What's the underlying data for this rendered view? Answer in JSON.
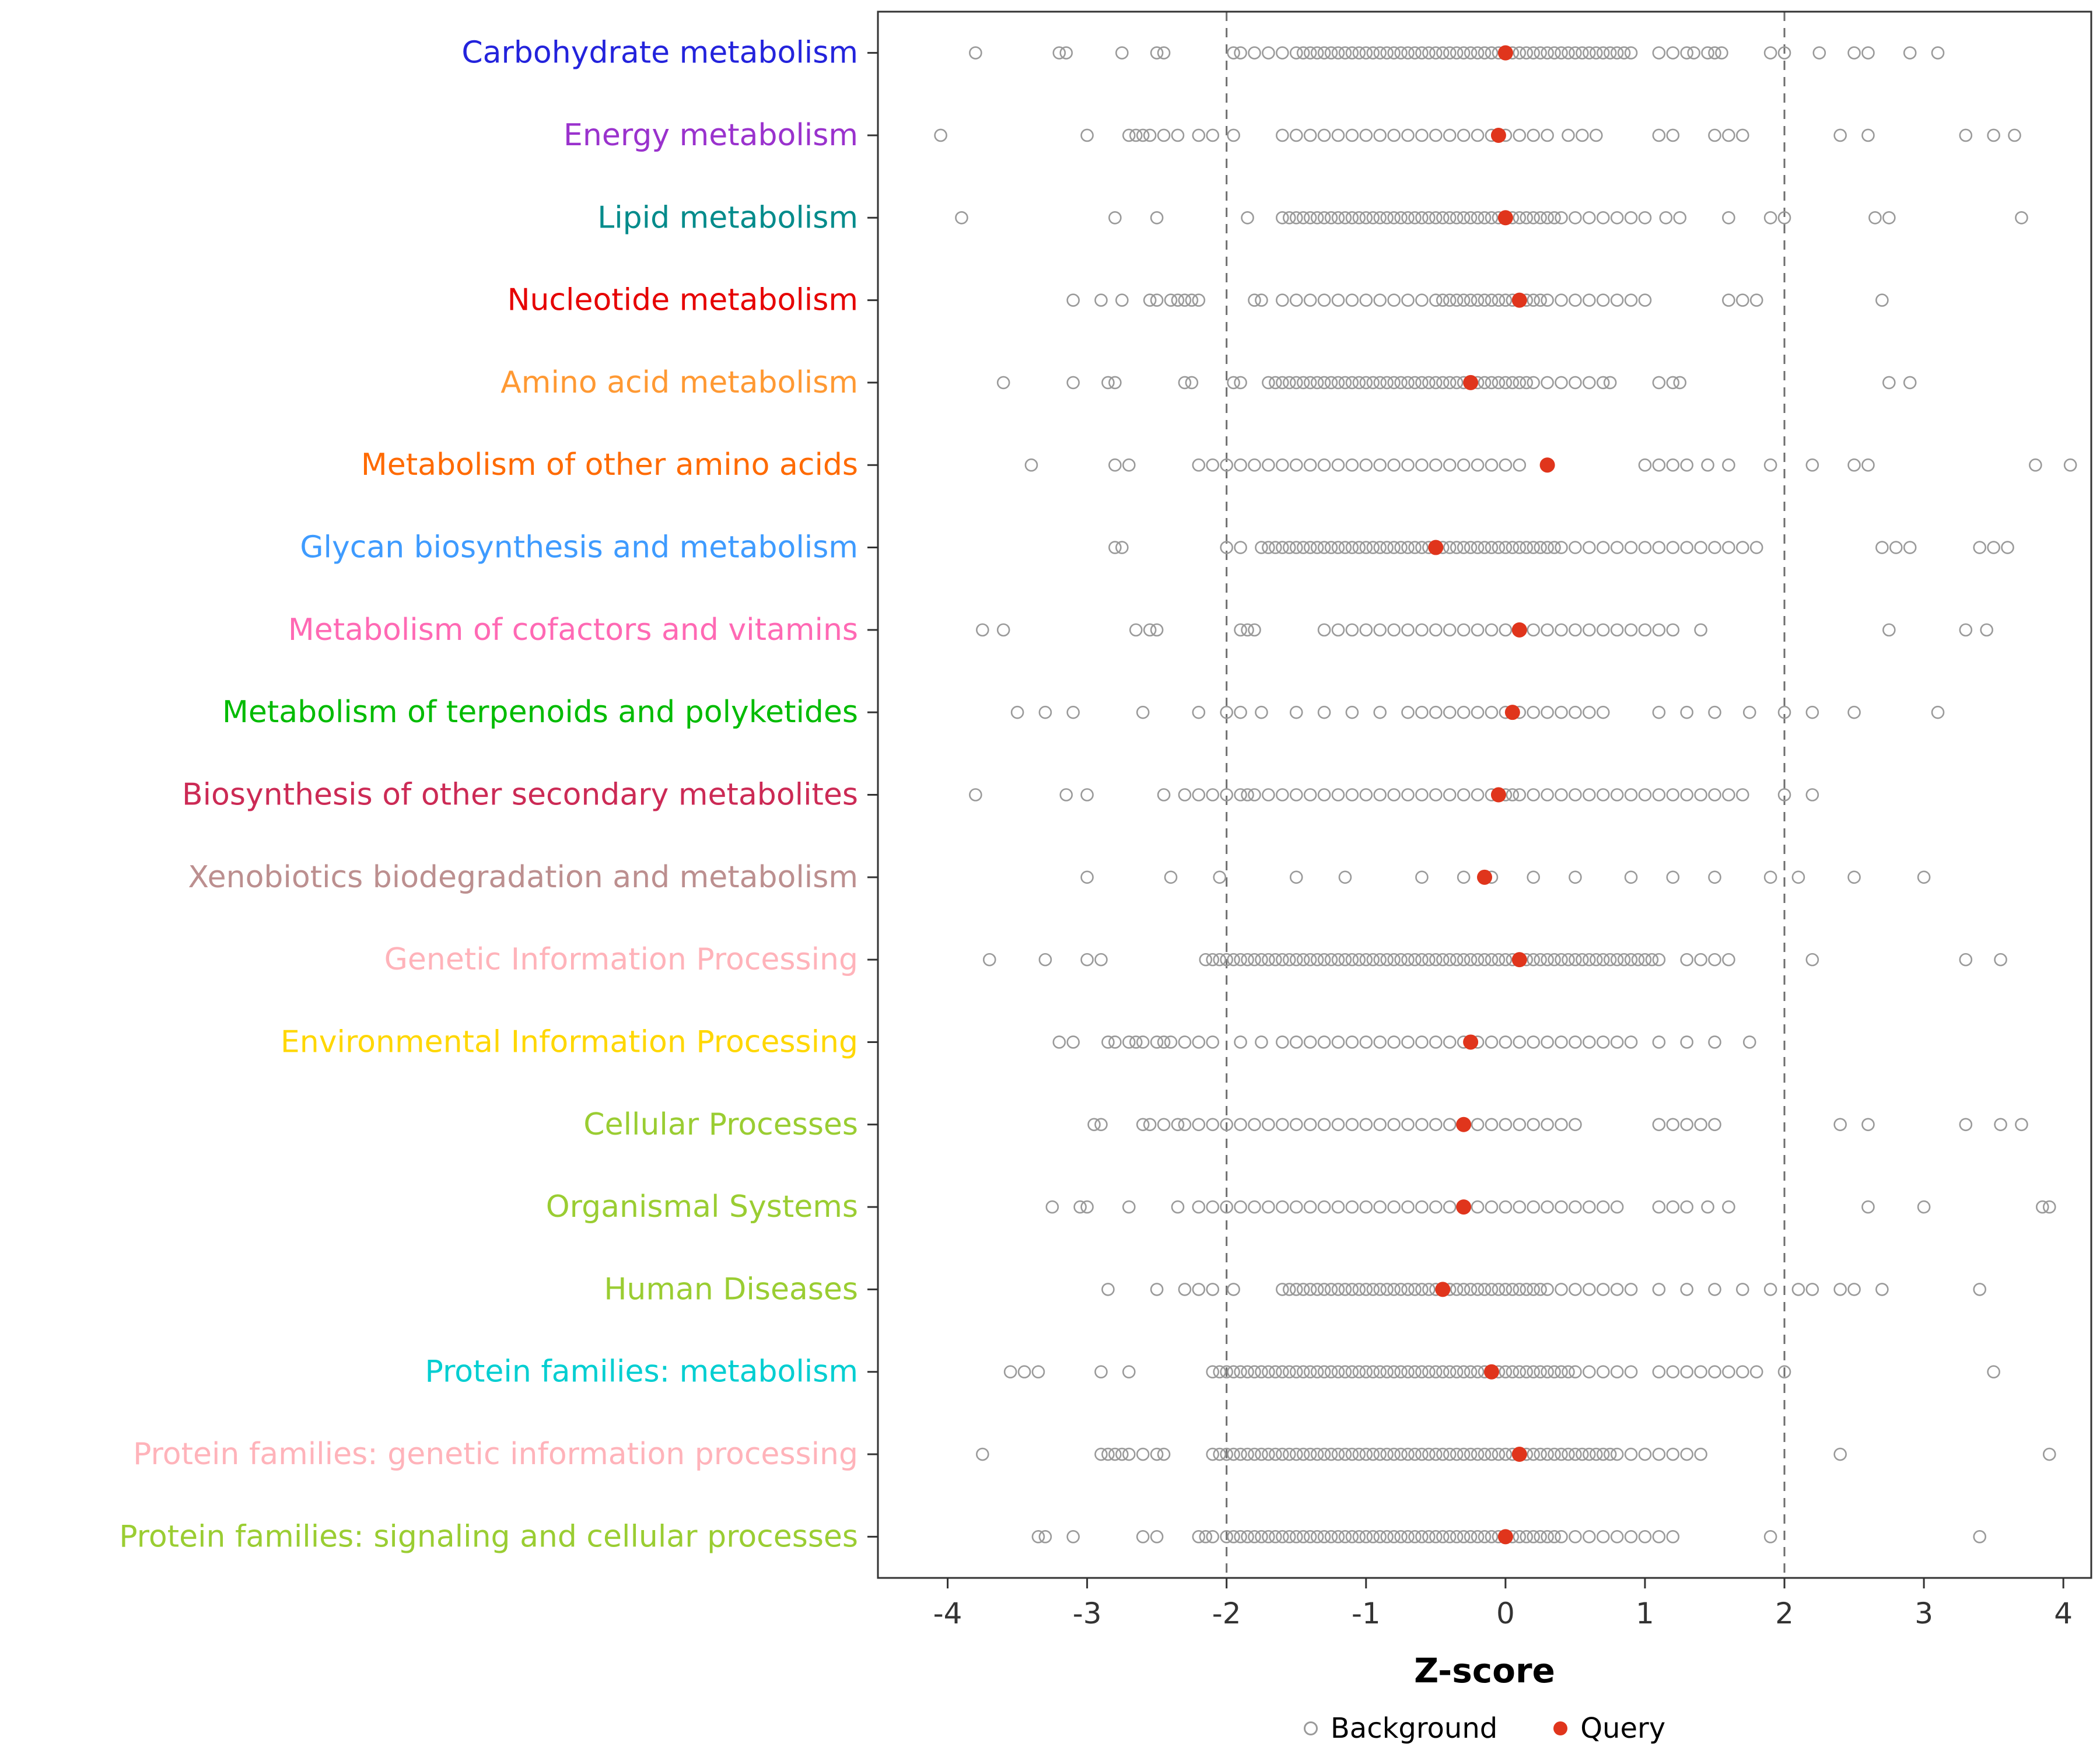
{
  "chart_data": {
    "type": "scatter",
    "subtype": "strip-plot",
    "title": "",
    "xlabel": "Z-score",
    "xlim": [
      -4.5,
      4.2
    ],
    "x_ticks": [
      -4,
      -3,
      -2,
      -1,
      0,
      1,
      2,
      3,
      4
    ],
    "threshold_lines": [
      -2,
      2
    ],
    "grid": false,
    "legend_position": "bottom",
    "legend": {
      "background_label": "Background",
      "query_label": "Query"
    },
    "colors": {
      "query": "#E0351C",
      "background_stroke": "#9a9a9a",
      "threshold": "#6e6e6e",
      "axis": "#333333",
      "border": "#333333"
    },
    "categories": [
      {
        "label": "Carbohydrate metabolism",
        "color": "#2323DC",
        "query": 0.0,
        "background": [
          -3.8,
          -3.2,
          -3.15,
          -2.75,
          -2.5,
          -2.45,
          -1.95,
          -1.9,
          -1.8,
          -1.7,
          -1.6,
          -1.5,
          -1.45,
          -1.4,
          -1.35,
          -1.3,
          -1.25,
          -1.2,
          -1.15,
          -1.1,
          -1.05,
          -1.0,
          -0.95,
          -0.9,
          -0.85,
          -0.8,
          -0.75,
          -0.7,
          -0.65,
          -0.6,
          -0.55,
          -0.5,
          -0.45,
          -0.4,
          -0.35,
          -0.3,
          -0.25,
          -0.2,
          -0.15,
          -0.1,
          -0.05,
          0.0,
          0.05,
          0.1,
          0.15,
          0.2,
          0.25,
          0.3,
          0.35,
          0.4,
          0.45,
          0.5,
          0.55,
          0.6,
          0.65,
          0.7,
          0.75,
          0.8,
          0.85,
          0.9,
          1.1,
          1.2,
          1.3,
          1.35,
          1.45,
          1.5,
          1.55,
          1.9,
          2.0,
          2.25,
          2.5,
          2.6,
          2.9,
          3.1
        ]
      },
      {
        "label": "Energy metabolism",
        "color": "#9A32CD",
        "query": -0.05,
        "background": [
          -4.05,
          -3.0,
          -2.7,
          -2.65,
          -2.6,
          -2.55,
          -2.45,
          -2.35,
          -2.2,
          -2.1,
          -1.95,
          -1.6,
          -1.5,
          -1.4,
          -1.3,
          -1.2,
          -1.1,
          -1.0,
          -0.9,
          -0.8,
          -0.7,
          -0.6,
          -0.5,
          -0.4,
          -0.3,
          -0.2,
          -0.1,
          0.0,
          0.1,
          0.2,
          0.3,
          0.45,
          0.55,
          0.65,
          1.1,
          1.2,
          1.5,
          1.6,
          1.7,
          2.4,
          2.6,
          3.3,
          3.5,
          3.65
        ]
      },
      {
        "label": "Lipid metabolism",
        "color": "#008B8B",
        "query": 0.0,
        "background": [
          -3.9,
          -2.8,
          -2.5,
          -1.85,
          -1.6,
          -1.55,
          -1.5,
          -1.45,
          -1.4,
          -1.35,
          -1.3,
          -1.25,
          -1.2,
          -1.15,
          -1.1,
          -1.05,
          -1.0,
          -0.95,
          -0.9,
          -0.85,
          -0.8,
          -0.75,
          -0.7,
          -0.65,
          -0.6,
          -0.55,
          -0.5,
          -0.45,
          -0.4,
          -0.35,
          -0.3,
          -0.25,
          -0.2,
          -0.15,
          -0.1,
          -0.05,
          0.0,
          0.05,
          0.1,
          0.15,
          0.2,
          0.25,
          0.3,
          0.35,
          0.4,
          0.5,
          0.6,
          0.7,
          0.8,
          0.9,
          1.0,
          1.15,
          1.25,
          1.6,
          1.9,
          2.0,
          2.65,
          2.75,
          3.7
        ]
      },
      {
        "label": "Nucleotide metabolism",
        "color": "#E60000",
        "query": 0.1,
        "background": [
          -3.1,
          -2.9,
          -2.75,
          -2.55,
          -2.5,
          -2.4,
          -2.35,
          -2.3,
          -2.25,
          -2.2,
          -1.8,
          -1.75,
          -1.6,
          -1.5,
          -1.4,
          -1.3,
          -1.2,
          -1.1,
          -1.0,
          -0.9,
          -0.8,
          -0.7,
          -0.6,
          -0.5,
          -0.45,
          -0.4,
          -0.35,
          -0.3,
          -0.25,
          -0.2,
          -0.15,
          -0.1,
          -0.05,
          0.0,
          0.05,
          0.1,
          0.15,
          0.2,
          0.25,
          0.3,
          0.4,
          0.5,
          0.6,
          0.7,
          0.8,
          0.9,
          1.0,
          1.6,
          1.7,
          1.8,
          2.7
        ]
      },
      {
        "label": "Amino acid metabolism",
        "color": "#FF9933",
        "query": -0.25,
        "background": [
          -3.6,
          -3.1,
          -2.85,
          -2.8,
          -2.3,
          -2.25,
          -1.95,
          -1.9,
          -1.7,
          -1.65,
          -1.6,
          -1.55,
          -1.5,
          -1.45,
          -1.4,
          -1.35,
          -1.3,
          -1.25,
          -1.2,
          -1.15,
          -1.1,
          -1.05,
          -1.0,
          -0.95,
          -0.9,
          -0.85,
          -0.8,
          -0.75,
          -0.7,
          -0.65,
          -0.6,
          -0.55,
          -0.5,
          -0.45,
          -0.4,
          -0.35,
          -0.3,
          -0.25,
          -0.2,
          -0.15,
          -0.1,
          -0.05,
          0.0,
          0.05,
          0.1,
          0.15,
          0.2,
          0.3,
          0.4,
          0.5,
          0.6,
          0.7,
          0.75,
          1.1,
          1.2,
          1.25,
          2.75,
          2.9
        ]
      },
      {
        "label": "Metabolism of other amino acids",
        "color": "#FF6A00",
        "query": 0.3,
        "background": [
          -3.4,
          -2.8,
          -2.7,
          -2.2,
          -2.1,
          -2.0,
          -1.9,
          -1.8,
          -1.7,
          -1.6,
          -1.5,
          -1.4,
          -1.3,
          -1.2,
          -1.1,
          -1.0,
          -0.9,
          -0.8,
          -0.7,
          -0.6,
          -0.5,
          -0.4,
          -0.3,
          -0.2,
          -0.1,
          0.0,
          0.1,
          1.0,
          1.1,
          1.2,
          1.3,
          1.45,
          1.6,
          1.9,
          2.2,
          2.5,
          2.6,
          3.8,
          4.05
        ]
      },
      {
        "label": "Glycan biosynthesis and metabolism",
        "color": "#3E9BFF",
        "query": -0.5,
        "background": [
          -2.8,
          -2.75,
          -2.0,
          -1.9,
          -1.75,
          -1.7,
          -1.65,
          -1.6,
          -1.55,
          -1.5,
          -1.45,
          -1.4,
          -1.35,
          -1.3,
          -1.25,
          -1.2,
          -1.15,
          -1.1,
          -1.05,
          -1.0,
          -0.95,
          -0.9,
          -0.85,
          -0.8,
          -0.75,
          -0.7,
          -0.65,
          -0.6,
          -0.55,
          -0.5,
          -0.45,
          -0.4,
          -0.35,
          -0.3,
          -0.25,
          -0.2,
          -0.15,
          -0.1,
          -0.05,
          0.0,
          0.05,
          0.1,
          0.15,
          0.2,
          0.25,
          0.3,
          0.35,
          0.4,
          0.5,
          0.6,
          0.7,
          0.8,
          0.9,
          1.0,
          1.1,
          1.2,
          1.3,
          1.4,
          1.5,
          1.6,
          1.7,
          1.8,
          2.7,
          2.8,
          2.9,
          3.4,
          3.5,
          3.6
        ]
      },
      {
        "label": "Metabolism of cofactors and vitamins",
        "color": "#FF69B4",
        "query": 0.1,
        "background": [
          -3.75,
          -3.6,
          -2.65,
          -2.55,
          -2.5,
          -1.9,
          -1.85,
          -1.8,
          -1.3,
          -1.2,
          -1.1,
          -1.0,
          -0.9,
          -0.8,
          -0.7,
          -0.6,
          -0.5,
          -0.4,
          -0.3,
          -0.2,
          -0.1,
          0.0,
          0.1,
          0.2,
          0.3,
          0.4,
          0.5,
          0.6,
          0.7,
          0.8,
          0.9,
          1.0,
          1.1,
          1.2,
          1.4,
          2.75,
          3.3,
          3.45
        ]
      },
      {
        "label": "Metabolism of terpenoids and polyketides",
        "color": "#00BB00",
        "query": 0.05,
        "background": [
          -3.5,
          -3.3,
          -3.1,
          -2.6,
          -2.2,
          -2.0,
          -1.9,
          -1.75,
          -1.5,
          -1.3,
          -1.1,
          -0.9,
          -0.7,
          -0.6,
          -0.5,
          -0.4,
          -0.3,
          -0.2,
          -0.1,
          0.0,
          0.1,
          0.2,
          0.3,
          0.4,
          0.5,
          0.6,
          0.7,
          1.1,
          1.3,
          1.5,
          1.75,
          2.0,
          2.2,
          2.5,
          3.1
        ]
      },
      {
        "label": "Biosynthesis of other secondary metabolites",
        "color": "#CC2A55",
        "query": -0.05,
        "background": [
          -3.8,
          -3.15,
          -3.0,
          -2.45,
          -2.3,
          -2.2,
          -2.1,
          -2.0,
          -1.9,
          -1.85,
          -1.8,
          -1.7,
          -1.6,
          -1.5,
          -1.4,
          -1.3,
          -1.2,
          -1.1,
          -1.0,
          -0.9,
          -0.8,
          -0.7,
          -0.6,
          -0.5,
          -0.4,
          -0.3,
          -0.2,
          -0.1,
          -0.05,
          0.0,
          0.05,
          0.1,
          0.2,
          0.3,
          0.4,
          0.5,
          0.6,
          0.7,
          0.8,
          0.9,
          1.0,
          1.1,
          1.2,
          1.3,
          1.4,
          1.5,
          1.6,
          1.7,
          2.0,
          2.2
        ]
      },
      {
        "label": "Xenobiotics biodegradation and metabolism",
        "color": "#BC8F8F",
        "query": -0.15,
        "background": [
          -3.0,
          -2.4,
          -2.05,
          -1.5,
          -1.15,
          -0.6,
          -0.3,
          -0.1,
          0.2,
          0.5,
          0.9,
          1.2,
          1.5,
          1.9,
          2.1,
          2.5,
          3.0
        ]
      },
      {
        "label": "Genetic Information Processing",
        "color": "#FFB3BA",
        "query": 0.1,
        "background": [
          -3.7,
          -3.3,
          -3.0,
          -2.9,
          -2.15,
          -2.1,
          -2.05,
          -2.0,
          -1.95,
          -1.9,
          -1.85,
          -1.8,
          -1.75,
          -1.7,
          -1.65,
          -1.6,
          -1.55,
          -1.5,
          -1.45,
          -1.4,
          -1.35,
          -1.3,
          -1.25,
          -1.2,
          -1.15,
          -1.1,
          -1.05,
          -1.0,
          -0.95,
          -0.9,
          -0.85,
          -0.8,
          -0.75,
          -0.7,
          -0.65,
          -0.6,
          -0.55,
          -0.5,
          -0.45,
          -0.4,
          -0.35,
          -0.3,
          -0.25,
          -0.2,
          -0.15,
          -0.1,
          -0.05,
          0.0,
          0.05,
          0.1,
          0.15,
          0.2,
          0.25,
          0.3,
          0.35,
          0.4,
          0.45,
          0.5,
          0.55,
          0.6,
          0.65,
          0.7,
          0.75,
          0.8,
          0.85,
          0.9,
          0.95,
          1.0,
          1.05,
          1.1,
          1.3,
          1.4,
          1.5,
          1.6,
          2.2,
          3.3,
          3.55
        ]
      },
      {
        "label": "Environmental Information Processing",
        "color": "#FFD700",
        "query": -0.25,
        "background": [
          -3.2,
          -3.1,
          -2.85,
          -2.8,
          -2.7,
          -2.65,
          -2.6,
          -2.5,
          -2.45,
          -2.4,
          -2.3,
          -2.2,
          -2.1,
          -1.9,
          -1.75,
          -1.6,
          -1.5,
          -1.4,
          -1.3,
          -1.2,
          -1.1,
          -1.0,
          -0.9,
          -0.8,
          -0.7,
          -0.6,
          -0.5,
          -0.4,
          -0.3,
          -0.2,
          -0.1,
          0.0,
          0.1,
          0.2,
          0.3,
          0.4,
          0.5,
          0.6,
          0.7,
          0.8,
          0.9,
          1.1,
          1.3,
          1.5,
          1.75
        ]
      },
      {
        "label": "Cellular Processes",
        "color": "#9ACD32",
        "query": -0.3,
        "background": [
          -2.95,
          -2.9,
          -2.6,
          -2.55,
          -2.45,
          -2.35,
          -2.3,
          -2.2,
          -2.1,
          -2.0,
          -1.9,
          -1.8,
          -1.7,
          -1.6,
          -1.5,
          -1.4,
          -1.3,
          -1.2,
          -1.1,
          -1.0,
          -0.9,
          -0.8,
          -0.7,
          -0.6,
          -0.5,
          -0.4,
          -0.3,
          -0.2,
          -0.1,
          0.0,
          0.1,
          0.2,
          0.3,
          0.4,
          0.5,
          1.1,
          1.2,
          1.3,
          1.4,
          1.5,
          2.4,
          2.6,
          3.3,
          3.55,
          3.7
        ]
      },
      {
        "label": "Organismal Systems",
        "color": "#9ACD32",
        "query": -0.3,
        "background": [
          -3.25,
          -3.05,
          -3.0,
          -2.7,
          -2.35,
          -2.2,
          -2.1,
          -2.0,
          -1.9,
          -1.8,
          -1.7,
          -1.6,
          -1.5,
          -1.4,
          -1.3,
          -1.2,
          -1.1,
          -1.0,
          -0.9,
          -0.8,
          -0.7,
          -0.6,
          -0.5,
          -0.4,
          -0.3,
          -0.2,
          -0.1,
          0.0,
          0.1,
          0.2,
          0.3,
          0.4,
          0.5,
          0.6,
          0.7,
          0.8,
          1.1,
          1.2,
          1.3,
          1.45,
          1.6,
          2.6,
          3.0,
          3.85,
          3.9
        ]
      },
      {
        "label": "Human Diseases",
        "color": "#9ACD32",
        "query": -0.45,
        "background": [
          -2.85,
          -2.5,
          -2.3,
          -2.2,
          -2.1,
          -1.95,
          -1.6,
          -1.55,
          -1.5,
          -1.45,
          -1.4,
          -1.35,
          -1.3,
          -1.25,
          -1.2,
          -1.15,
          -1.1,
          -1.05,
          -1.0,
          -0.95,
          -0.9,
          -0.85,
          -0.8,
          -0.75,
          -0.7,
          -0.65,
          -0.6,
          -0.55,
          -0.5,
          -0.45,
          -0.4,
          -0.35,
          -0.3,
          -0.25,
          -0.2,
          -0.15,
          -0.1,
          -0.05,
          0.0,
          0.05,
          0.1,
          0.15,
          0.2,
          0.25,
          0.3,
          0.4,
          0.5,
          0.6,
          0.7,
          0.8,
          0.9,
          1.1,
          1.3,
          1.5,
          1.7,
          1.9,
          2.1,
          2.2,
          2.4,
          2.5,
          2.7,
          3.4
        ]
      },
      {
        "label": "Protein families: metabolism",
        "color": "#00CED1",
        "query": -0.1,
        "background": [
          -3.55,
          -3.45,
          -3.35,
          -2.9,
          -2.7,
          -2.1,
          -2.05,
          -2.0,
          -1.95,
          -1.9,
          -1.85,
          -1.8,
          -1.75,
          -1.7,
          -1.65,
          -1.6,
          -1.55,
          -1.5,
          -1.45,
          -1.4,
          -1.35,
          -1.3,
          -1.25,
          -1.2,
          -1.15,
          -1.1,
          -1.05,
          -1.0,
          -0.95,
          -0.9,
          -0.85,
          -0.8,
          -0.75,
          -0.7,
          -0.65,
          -0.6,
          -0.55,
          -0.5,
          -0.45,
          -0.4,
          -0.35,
          -0.3,
          -0.25,
          -0.2,
          -0.15,
          -0.1,
          -0.05,
          0.0,
          0.05,
          0.1,
          0.15,
          0.2,
          0.25,
          0.3,
          0.35,
          0.4,
          0.45,
          0.5,
          0.6,
          0.7,
          0.8,
          0.9,
          1.1,
          1.2,
          1.3,
          1.4,
          1.5,
          1.6,
          1.7,
          1.8,
          2.0,
          3.5
        ]
      },
      {
        "label": "Protein families: genetic information processing",
        "color": "#FFB3BA",
        "query": 0.1,
        "background": [
          -3.75,
          -2.9,
          -2.85,
          -2.8,
          -2.75,
          -2.7,
          -2.6,
          -2.5,
          -2.45,
          -2.1,
          -2.05,
          -2.0,
          -1.95,
          -1.9,
          -1.85,
          -1.8,
          -1.75,
          -1.7,
          -1.65,
          -1.6,
          -1.55,
          -1.5,
          -1.45,
          -1.4,
          -1.35,
          -1.3,
          -1.25,
          -1.2,
          -1.15,
          -1.1,
          -1.05,
          -1.0,
          -0.95,
          -0.9,
          -0.85,
          -0.8,
          -0.75,
          -0.7,
          -0.65,
          -0.6,
          -0.55,
          -0.5,
          -0.45,
          -0.4,
          -0.35,
          -0.3,
          -0.25,
          -0.2,
          -0.15,
          -0.1,
          -0.05,
          0.0,
          0.05,
          0.1,
          0.15,
          0.2,
          0.25,
          0.3,
          0.35,
          0.4,
          0.45,
          0.5,
          0.55,
          0.6,
          0.65,
          0.7,
          0.75,
          0.8,
          0.9,
          1.0,
          1.1,
          1.2,
          1.3,
          1.4,
          2.4,
          3.9
        ]
      },
      {
        "label": "Protein families: signaling and cellular processes",
        "color": "#9ACD32",
        "query": 0.0,
        "background": [
          -3.35,
          -3.3,
          -3.1,
          -2.6,
          -2.5,
          -2.2,
          -2.15,
          -2.1,
          -2.0,
          -1.95,
          -1.9,
          -1.85,
          -1.8,
          -1.75,
          -1.7,
          -1.65,
          -1.6,
          -1.55,
          -1.5,
          -1.45,
          -1.4,
          -1.35,
          -1.3,
          -1.25,
          -1.2,
          -1.15,
          -1.1,
          -1.05,
          -1.0,
          -0.95,
          -0.9,
          -0.85,
          -0.8,
          -0.75,
          -0.7,
          -0.65,
          -0.6,
          -0.55,
          -0.5,
          -0.45,
          -0.4,
          -0.35,
          -0.3,
          -0.25,
          -0.2,
          -0.15,
          -0.1,
          -0.05,
          0.0,
          0.05,
          0.1,
          0.15,
          0.2,
          0.25,
          0.3,
          0.35,
          0.4,
          0.5,
          0.6,
          0.7,
          0.8,
          0.9,
          1.0,
          1.1,
          1.2,
          1.9,
          3.4
        ]
      }
    ]
  }
}
